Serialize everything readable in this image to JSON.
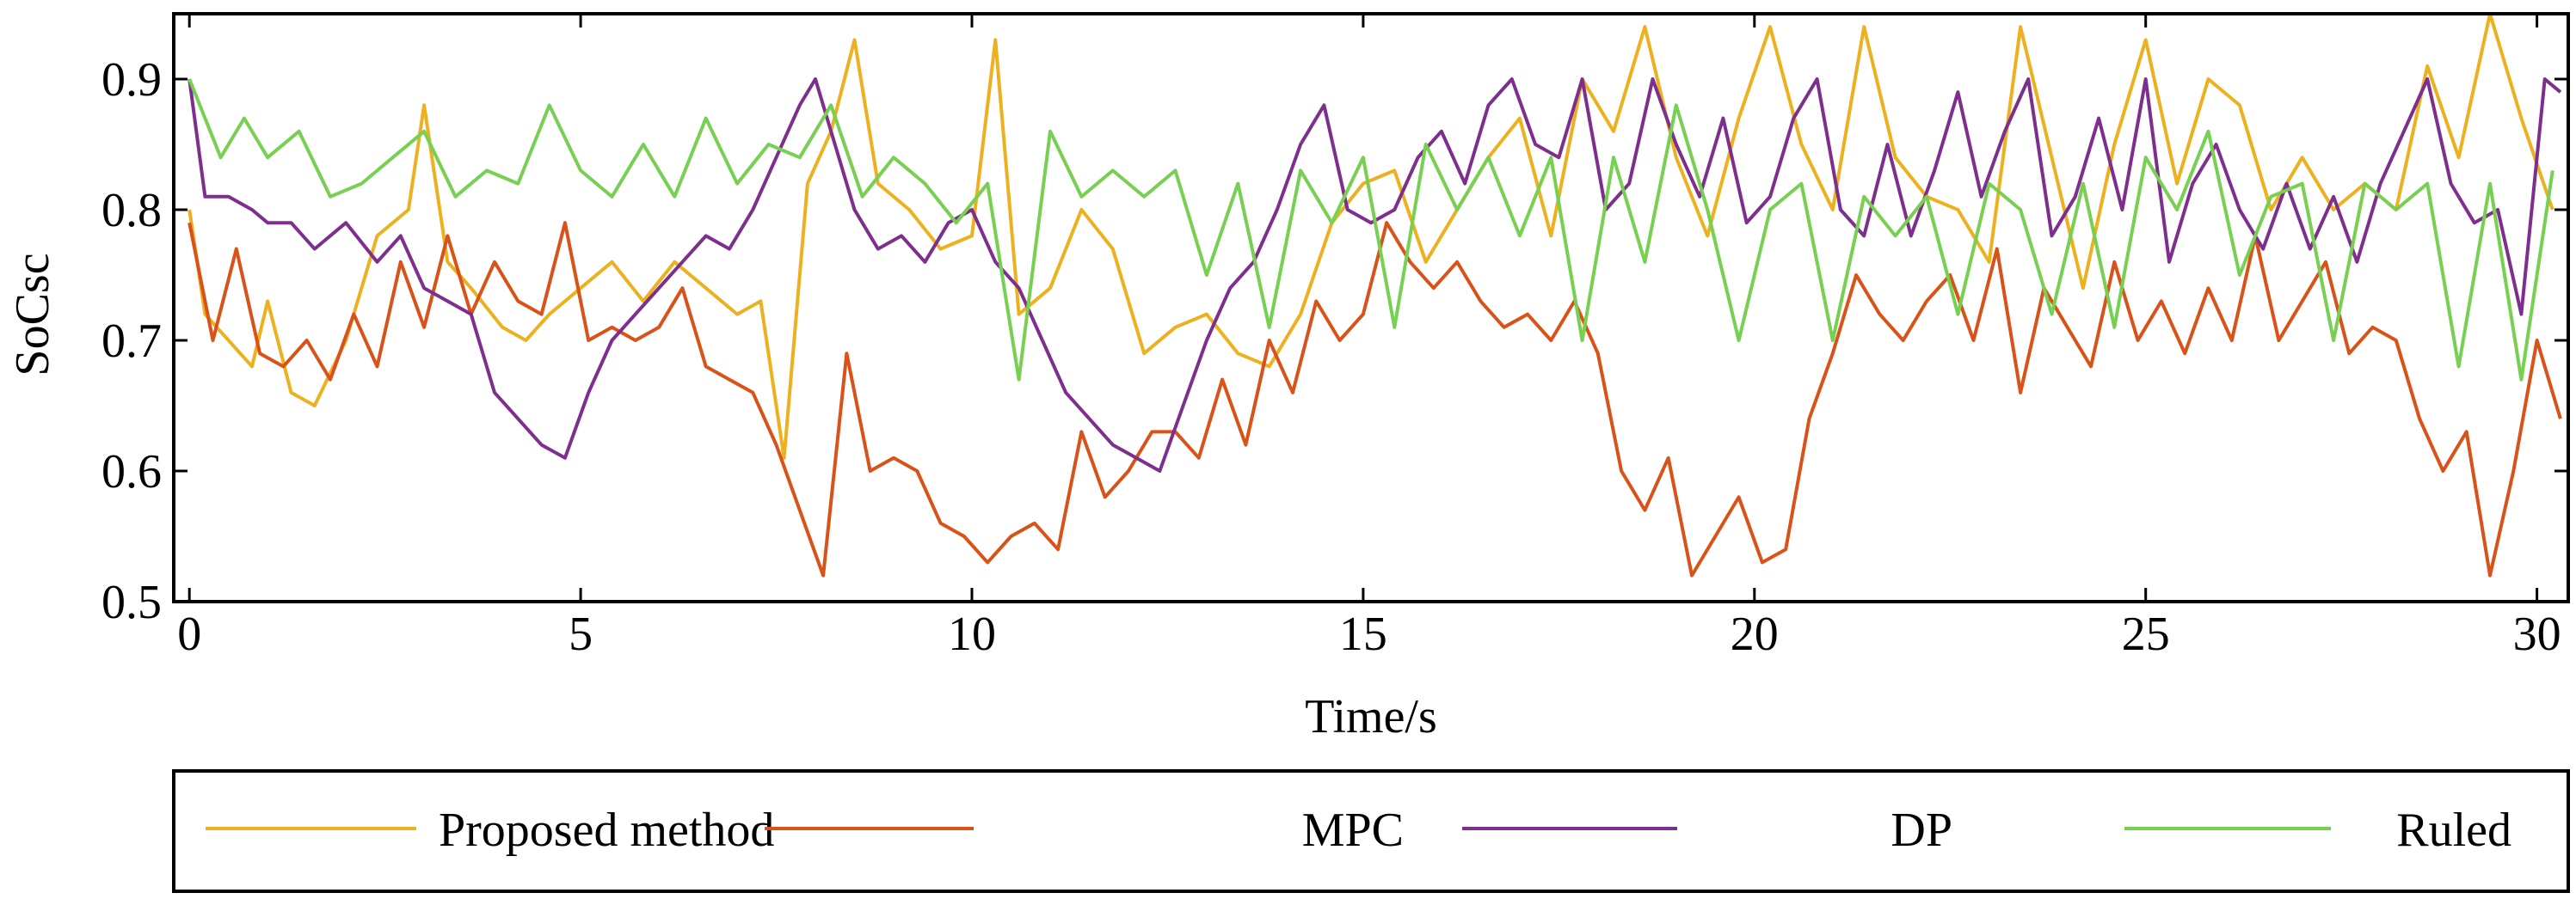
{
  "chart_data": {
    "type": "line",
    "title": "",
    "xlabel": "Time/s",
    "ylabel": "SoCsc",
    "xlim": [
      -0.2,
      30.4
    ],
    "ylim": [
      0.5,
      0.95
    ],
    "xticks": [
      0,
      5,
      10,
      15,
      20,
      25,
      30
    ],
    "yticks": [
      0.5,
      0.6,
      0.7,
      0.8,
      0.9
    ],
    "xtick_labels": [
      "0",
      "5",
      "10",
      "15",
      "20",
      "25",
      "30"
    ],
    "ytick_labels": [
      "0.5",
      "0.6",
      "0.7",
      "0.8",
      "0.9"
    ],
    "grid": false,
    "legend_position": "bottom",
    "series": [
      {
        "name": "Proposed method",
        "color": "#EDB120",
        "x": [
          0,
          0.2,
          0.5,
          0.8,
          1.0,
          1.3,
          1.6,
          2.0,
          2.4,
          2.8,
          3.0,
          3.3,
          3.6,
          4.0,
          4.3,
          4.6,
          5.0,
          5.4,
          5.8,
          6.2,
          6.6,
          7.0,
          7.3,
          7.6,
          7.9,
          8.2,
          8.5,
          8.8,
          9.2,
          9.6,
          10.0,
          10.3,
          10.6,
          11.0,
          11.4,
          11.8,
          12.2,
          12.6,
          13.0,
          13.4,
          13.8,
          14.2,
          14.6,
          15.0,
          15.4,
          15.8,
          16.2,
          16.6,
          17.0,
          17.4,
          17.8,
          18.2,
          18.6,
          19.0,
          19.4,
          19.8,
          20.2,
          20.6,
          21.0,
          21.4,
          21.8,
          22.2,
          22.6,
          23.0,
          23.4,
          23.8,
          24.2,
          24.6,
          25.0,
          25.4,
          25.8,
          26.2,
          26.6,
          27.0,
          27.4,
          27.8,
          28.2,
          28.6,
          29.0,
          29.4,
          29.8,
          30.2
        ],
        "values": [
          0.8,
          0.72,
          0.7,
          0.68,
          0.73,
          0.66,
          0.65,
          0.7,
          0.78,
          0.8,
          0.88,
          0.76,
          0.74,
          0.71,
          0.7,
          0.72,
          0.74,
          0.76,
          0.73,
          0.76,
          0.74,
          0.72,
          0.73,
          0.61,
          0.82,
          0.86,
          0.93,
          0.82,
          0.8,
          0.77,
          0.78,
          0.93,
          0.72,
          0.74,
          0.8,
          0.77,
          0.69,
          0.71,
          0.72,
          0.69,
          0.68,
          0.72,
          0.79,
          0.82,
          0.83,
          0.76,
          0.8,
          0.84,
          0.87,
          0.78,
          0.9,
          0.86,
          0.94,
          0.84,
          0.78,
          0.87,
          0.94,
          0.85,
          0.8,
          0.94,
          0.84,
          0.81,
          0.8,
          0.76,
          0.94,
          0.84,
          0.74,
          0.85,
          0.93,
          0.82,
          0.9,
          0.88,
          0.8,
          0.84,
          0.8,
          0.82,
          0.8,
          0.91,
          0.84,
          0.95,
          0.87,
          0.8
        ]
      },
      {
        "name": "MPC",
        "color": "#D95319",
        "x": [
          0,
          0.3,
          0.6,
          0.9,
          1.2,
          1.5,
          1.8,
          2.1,
          2.4,
          2.7,
          3.0,
          3.3,
          3.6,
          3.9,
          4.2,
          4.5,
          4.8,
          5.1,
          5.4,
          5.7,
          6.0,
          6.3,
          6.6,
          6.9,
          7.2,
          7.5,
          7.8,
          8.1,
          8.4,
          8.7,
          9.0,
          9.3,
          9.6,
          9.9,
          10.2,
          10.5,
          10.8,
          11.1,
          11.4,
          11.7,
          12.0,
          12.3,
          12.6,
          12.9,
          13.2,
          13.5,
          13.8,
          14.1,
          14.4,
          14.7,
          15.0,
          15.3,
          15.6,
          15.9,
          16.2,
          16.5,
          16.8,
          17.1,
          17.4,
          17.7,
          18.0,
          18.3,
          18.6,
          18.9,
          19.2,
          19.5,
          19.8,
          20.1,
          20.4,
          20.7,
          21.0,
          21.3,
          21.6,
          21.9,
          22.2,
          22.5,
          22.8,
          23.1,
          23.4,
          23.7,
          24.0,
          24.3,
          24.6,
          24.9,
          25.2,
          25.5,
          25.8,
          26.1,
          26.4,
          26.7,
          27.0,
          27.3,
          27.6,
          27.9,
          28.2,
          28.5,
          28.8,
          29.1,
          29.4,
          29.7,
          30.0,
          30.3
        ],
        "values": [
          0.79,
          0.7,
          0.77,
          0.69,
          0.68,
          0.7,
          0.67,
          0.72,
          0.68,
          0.76,
          0.71,
          0.78,
          0.72,
          0.76,
          0.73,
          0.72,
          0.79,
          0.7,
          0.71,
          0.7,
          0.71,
          0.74,
          0.68,
          0.67,
          0.66,
          0.62,
          0.57,
          0.52,
          0.69,
          0.6,
          0.61,
          0.6,
          0.56,
          0.55,
          0.53,
          0.55,
          0.56,
          0.54,
          0.63,
          0.58,
          0.6,
          0.63,
          0.63,
          0.61,
          0.67,
          0.62,
          0.7,
          0.66,
          0.73,
          0.7,
          0.72,
          0.79,
          0.76,
          0.74,
          0.76,
          0.73,
          0.71,
          0.72,
          0.7,
          0.73,
          0.69,
          0.6,
          0.57,
          0.61,
          0.52,
          0.55,
          0.58,
          0.53,
          0.54,
          0.64,
          0.69,
          0.75,
          0.72,
          0.7,
          0.73,
          0.75,
          0.7,
          0.77,
          0.66,
          0.74,
          0.71,
          0.68,
          0.76,
          0.7,
          0.73,
          0.69,
          0.74,
          0.7,
          0.78,
          0.7,
          0.73,
          0.76,
          0.69,
          0.71,
          0.7,
          0.64,
          0.6,
          0.63,
          0.52,
          0.6,
          0.7,
          0.64
        ]
      },
      {
        "name": "DP",
        "color": "#7E2F8E",
        "x": [
          0,
          0.2,
          0.5,
          0.8,
          1.0,
          1.3,
          1.6,
          2.0,
          2.4,
          2.7,
          3.0,
          3.3,
          3.6,
          3.9,
          4.2,
          4.5,
          4.8,
          5.1,
          5.4,
          5.7,
          6.0,
          6.3,
          6.6,
          6.9,
          7.2,
          7.5,
          7.8,
          8.0,
          8.2,
          8.5,
          8.8,
          9.1,
          9.4,
          9.7,
          10.0,
          10.3,
          10.6,
          10.9,
          11.2,
          11.5,
          11.8,
          12.1,
          12.4,
          12.7,
          13.0,
          13.3,
          13.6,
          13.9,
          14.2,
          14.5,
          14.8,
          15.1,
          15.4,
          15.7,
          16.0,
          16.3,
          16.6,
          16.9,
          17.2,
          17.5,
          17.8,
          18.1,
          18.4,
          18.7,
          19.0,
          19.3,
          19.6,
          19.9,
          20.2,
          20.5,
          20.8,
          21.1,
          21.4,
          21.7,
          22.0,
          22.3,
          22.6,
          22.9,
          23.2,
          23.5,
          23.8,
          24.1,
          24.4,
          24.7,
          25.0,
          25.3,
          25.6,
          25.9,
          26.2,
          26.5,
          26.8,
          27.1,
          27.4,
          27.7,
          28.0,
          28.3,
          28.6,
          28.9,
          29.2,
          29.5,
          29.8,
          30.1,
          30.3
        ],
        "values": [
          0.9,
          0.81,
          0.81,
          0.8,
          0.79,
          0.79,
          0.77,
          0.79,
          0.76,
          0.78,
          0.74,
          0.73,
          0.72,
          0.66,
          0.64,
          0.62,
          0.61,
          0.66,
          0.7,
          0.72,
          0.74,
          0.76,
          0.78,
          0.77,
          0.8,
          0.84,
          0.88,
          0.9,
          0.86,
          0.8,
          0.77,
          0.78,
          0.76,
          0.79,
          0.8,
          0.76,
          0.74,
          0.7,
          0.66,
          0.64,
          0.62,
          0.61,
          0.6,
          0.65,
          0.7,
          0.74,
          0.76,
          0.8,
          0.85,
          0.88,
          0.8,
          0.79,
          0.8,
          0.84,
          0.86,
          0.82,
          0.88,
          0.9,
          0.85,
          0.84,
          0.9,
          0.8,
          0.82,
          0.9,
          0.85,
          0.81,
          0.87,
          0.79,
          0.81,
          0.87,
          0.9,
          0.8,
          0.78,
          0.85,
          0.78,
          0.83,
          0.89,
          0.81,
          0.86,
          0.9,
          0.78,
          0.81,
          0.87,
          0.8,
          0.9,
          0.76,
          0.82,
          0.85,
          0.8,
          0.77,
          0.82,
          0.77,
          0.81,
          0.76,
          0.82,
          0.86,
          0.9,
          0.82,
          0.79,
          0.8,
          0.72,
          0.9,
          0.89
        ]
      },
      {
        "name": "Ruled",
        "color": "#77D052",
        "x": [
          0,
          0.4,
          0.7,
          1.0,
          1.4,
          1.8,
          2.2,
          2.6,
          3.0,
          3.4,
          3.8,
          4.2,
          4.6,
          5.0,
          5.4,
          5.8,
          6.2,
          6.6,
          7.0,
          7.4,
          7.8,
          8.2,
          8.6,
          9.0,
          9.4,
          9.8,
          10.2,
          10.6,
          11.0,
          11.4,
          11.8,
          12.2,
          12.6,
          13.0,
          13.4,
          13.8,
          14.2,
          14.6,
          15.0,
          15.4,
          15.8,
          16.2,
          16.6,
          17.0,
          17.4,
          17.8,
          18.2,
          18.6,
          19.0,
          19.4,
          19.8,
          20.2,
          20.6,
          21.0,
          21.4,
          21.8,
          22.2,
          22.6,
          23.0,
          23.4,
          23.8,
          24.2,
          24.6,
          25.0,
          25.4,
          25.8,
          26.2,
          26.6,
          27.0,
          27.4,
          27.8,
          28.2,
          28.6,
          29.0,
          29.4,
          29.8,
          30.2
        ],
        "values": [
          0.9,
          0.84,
          0.87,
          0.84,
          0.86,
          0.81,
          0.82,
          0.84,
          0.86,
          0.81,
          0.83,
          0.82,
          0.88,
          0.83,
          0.81,
          0.85,
          0.81,
          0.87,
          0.82,
          0.85,
          0.84,
          0.88,
          0.81,
          0.84,
          0.82,
          0.79,
          0.82,
          0.67,
          0.86,
          0.81,
          0.83,
          0.81,
          0.83,
          0.75,
          0.82,
          0.71,
          0.83,
          0.79,
          0.84,
          0.71,
          0.85,
          0.8,
          0.84,
          0.78,
          0.84,
          0.7,
          0.84,
          0.76,
          0.88,
          0.8,
          0.7,
          0.8,
          0.82,
          0.7,
          0.81,
          0.78,
          0.81,
          0.72,
          0.82,
          0.8,
          0.72,
          0.82,
          0.71,
          0.84,
          0.8,
          0.86,
          0.75,
          0.81,
          0.82,
          0.7,
          0.82,
          0.8,
          0.82,
          0.68,
          0.82,
          0.67,
          0.83
        ]
      }
    ]
  }
}
